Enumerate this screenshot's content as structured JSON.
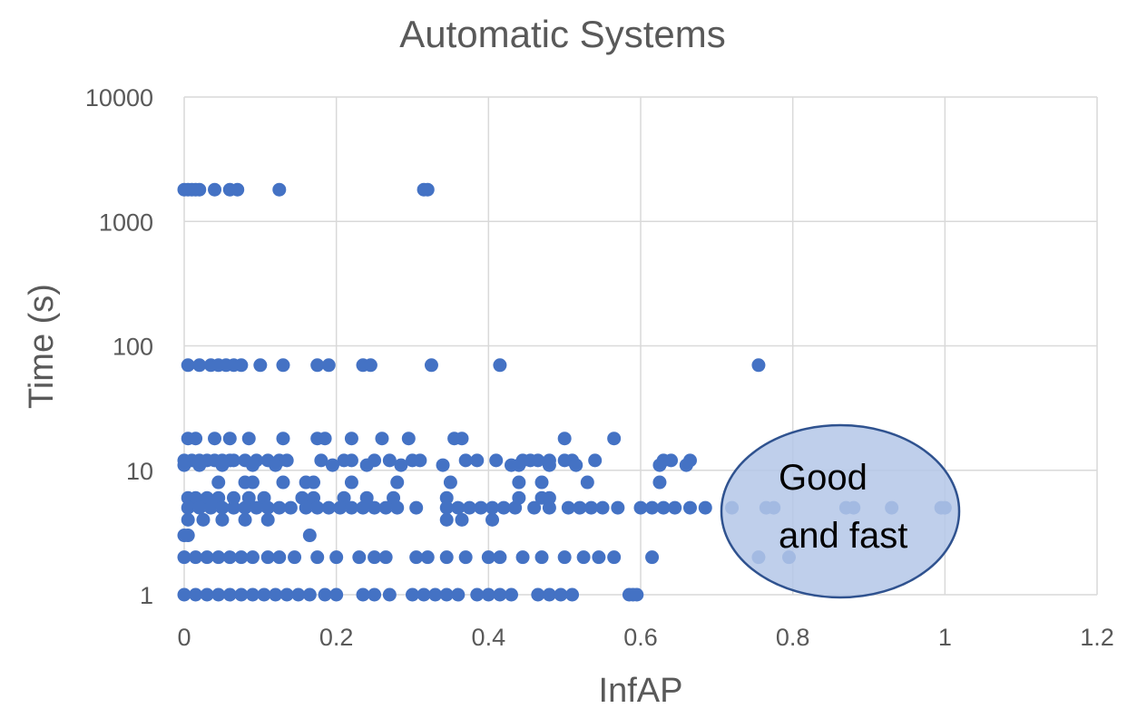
{
  "chart_data": {
    "type": "scatter",
    "title": "Automatic Systems",
    "xlabel": "InfAP",
    "ylabel": "Time (s)",
    "xlim": [
      0,
      1.2
    ],
    "ylim": [
      1,
      10000
    ],
    "y_scale": "log",
    "x_ticks": [
      "0",
      "0.2",
      "0.4",
      "0.6",
      "0.8",
      "1",
      "1.2"
    ],
    "y_ticks": [
      "1",
      "10",
      "100",
      "1000",
      "10000"
    ],
    "grid": true,
    "legend": "none",
    "marker_color": "#4472c4",
    "annotation": {
      "text_lines": [
        "Good",
        "and fast"
      ],
      "shape": "ellipse",
      "fill": "#b4c7e7",
      "stroke": "#2f528f"
    },
    "series": [
      {
        "points": [
          [
            0.0,
            1800
          ],
          [
            0.005,
            1800
          ],
          [
            0.01,
            1800
          ],
          [
            0.015,
            1800
          ],
          [
            0.02,
            1800
          ],
          [
            0.04,
            1800
          ],
          [
            0.06,
            1800
          ],
          [
            0.07,
            1800
          ],
          [
            0.125,
            1800
          ],
          [
            0.315,
            1800
          ],
          [
            0.32,
            1800
          ],
          [
            0.005,
            70
          ],
          [
            0.02,
            70
          ],
          [
            0.035,
            70
          ],
          [
            0.045,
            70
          ],
          [
            0.055,
            70
          ],
          [
            0.065,
            70
          ],
          [
            0.075,
            70
          ],
          [
            0.1,
            70
          ],
          [
            0.13,
            70
          ],
          [
            0.175,
            70
          ],
          [
            0.19,
            70
          ],
          [
            0.235,
            70
          ],
          [
            0.245,
            70
          ],
          [
            0.325,
            70
          ],
          [
            0.415,
            70
          ],
          [
            0.755,
            70
          ],
          [
            0.005,
            18
          ],
          [
            0.015,
            18
          ],
          [
            0.04,
            18
          ],
          [
            0.06,
            18
          ],
          [
            0.085,
            18
          ],
          [
            0.13,
            18
          ],
          [
            0.175,
            18
          ],
          [
            0.185,
            18
          ],
          [
            0.22,
            18
          ],
          [
            0.26,
            18
          ],
          [
            0.295,
            18
          ],
          [
            0.355,
            18
          ],
          [
            0.365,
            18
          ],
          [
            0.5,
            18
          ],
          [
            0.565,
            18
          ],
          [
            0.0,
            12
          ],
          [
            0.01,
            12
          ],
          [
            0.02,
            12
          ],
          [
            0.03,
            12
          ],
          [
            0.04,
            12
          ],
          [
            0.05,
            12
          ],
          [
            0.06,
            12
          ],
          [
            0.065,
            12
          ],
          [
            0.08,
            12
          ],
          [
            0.095,
            12
          ],
          [
            0.11,
            12
          ],
          [
            0.125,
            12
          ],
          [
            0.135,
            12
          ],
          [
            0.18,
            12
          ],
          [
            0.21,
            12
          ],
          [
            0.22,
            12
          ],
          [
            0.25,
            12
          ],
          [
            0.27,
            12
          ],
          [
            0.3,
            12
          ],
          [
            0.31,
            12
          ],
          [
            0.37,
            12
          ],
          [
            0.385,
            12
          ],
          [
            0.41,
            12
          ],
          [
            0.445,
            12
          ],
          [
            0.455,
            12
          ],
          [
            0.465,
            12
          ],
          [
            0.48,
            12
          ],
          [
            0.5,
            12
          ],
          [
            0.51,
            12
          ],
          [
            0.54,
            12
          ],
          [
            0.63,
            12
          ],
          [
            0.64,
            12
          ],
          [
            0.665,
            12
          ],
          [
            0.0,
            11
          ],
          [
            0.02,
            11
          ],
          [
            0.05,
            11
          ],
          [
            0.09,
            11
          ],
          [
            0.12,
            11
          ],
          [
            0.195,
            11
          ],
          [
            0.24,
            11
          ],
          [
            0.285,
            11
          ],
          [
            0.34,
            11
          ],
          [
            0.43,
            11
          ],
          [
            0.44,
            11
          ],
          [
            0.48,
            11
          ],
          [
            0.515,
            11
          ],
          [
            0.625,
            11
          ],
          [
            0.66,
            11
          ],
          [
            0.045,
            8
          ],
          [
            0.08,
            8
          ],
          [
            0.09,
            8
          ],
          [
            0.13,
            8
          ],
          [
            0.16,
            8
          ],
          [
            0.17,
            8
          ],
          [
            0.22,
            8
          ],
          [
            0.28,
            8
          ],
          [
            0.35,
            8
          ],
          [
            0.44,
            8
          ],
          [
            0.47,
            8
          ],
          [
            0.53,
            8
          ],
          [
            0.625,
            8
          ],
          [
            0.005,
            6
          ],
          [
            0.015,
            6
          ],
          [
            0.03,
            6
          ],
          [
            0.045,
            6
          ],
          [
            0.065,
            6
          ],
          [
            0.085,
            6
          ],
          [
            0.105,
            6
          ],
          [
            0.155,
            6
          ],
          [
            0.17,
            6
          ],
          [
            0.21,
            6
          ],
          [
            0.24,
            6
          ],
          [
            0.275,
            6
          ],
          [
            0.345,
            6
          ],
          [
            0.44,
            6
          ],
          [
            0.47,
            6
          ],
          [
            0.48,
            6
          ],
          [
            0.005,
            5
          ],
          [
            0.02,
            5
          ],
          [
            0.035,
            5
          ],
          [
            0.05,
            5
          ],
          [
            0.065,
            5
          ],
          [
            0.08,
            5
          ],
          [
            0.095,
            5
          ],
          [
            0.11,
            5
          ],
          [
            0.125,
            5
          ],
          [
            0.14,
            5
          ],
          [
            0.16,
            5
          ],
          [
            0.175,
            5
          ],
          [
            0.19,
            5
          ],
          [
            0.205,
            5
          ],
          [
            0.22,
            5
          ],
          [
            0.235,
            5
          ],
          [
            0.25,
            5
          ],
          [
            0.265,
            5
          ],
          [
            0.28,
            5
          ],
          [
            0.305,
            5
          ],
          [
            0.345,
            5
          ],
          [
            0.36,
            5
          ],
          [
            0.375,
            5
          ],
          [
            0.39,
            5
          ],
          [
            0.405,
            5
          ],
          [
            0.42,
            5
          ],
          [
            0.435,
            5
          ],
          [
            0.46,
            5
          ],
          [
            0.48,
            5
          ],
          [
            0.505,
            5
          ],
          [
            0.52,
            5
          ],
          [
            0.535,
            5
          ],
          [
            0.55,
            5
          ],
          [
            0.57,
            5
          ],
          [
            0.6,
            5
          ],
          [
            0.615,
            5
          ],
          [
            0.63,
            5
          ],
          [
            0.645,
            5
          ],
          [
            0.665,
            5
          ],
          [
            0.685,
            5
          ],
          [
            0.72,
            5
          ],
          [
            0.765,
            5
          ],
          [
            0.775,
            5
          ],
          [
            0.87,
            5
          ],
          [
            0.88,
            5
          ],
          [
            0.93,
            5
          ],
          [
            0.995,
            5
          ],
          [
            1.0,
            5
          ],
          [
            0.005,
            4
          ],
          [
            0.025,
            4
          ],
          [
            0.05,
            4
          ],
          [
            0.08,
            4
          ],
          [
            0.11,
            4
          ],
          [
            0.345,
            4
          ],
          [
            0.365,
            4
          ],
          [
            0.405,
            4
          ],
          [
            0.0,
            3
          ],
          [
            0.005,
            3
          ],
          [
            0.165,
            3
          ],
          [
            0.0,
            2
          ],
          [
            0.015,
            2
          ],
          [
            0.03,
            2
          ],
          [
            0.045,
            2
          ],
          [
            0.06,
            2
          ],
          [
            0.075,
            2
          ],
          [
            0.09,
            2
          ],
          [
            0.11,
            2
          ],
          [
            0.125,
            2
          ],
          [
            0.145,
            2
          ],
          [
            0.175,
            2
          ],
          [
            0.2,
            2
          ],
          [
            0.23,
            2
          ],
          [
            0.25,
            2
          ],
          [
            0.265,
            2
          ],
          [
            0.305,
            2
          ],
          [
            0.32,
            2
          ],
          [
            0.345,
            2
          ],
          [
            0.37,
            2
          ],
          [
            0.4,
            2
          ],
          [
            0.415,
            2
          ],
          [
            0.445,
            2
          ],
          [
            0.47,
            2
          ],
          [
            0.5,
            2
          ],
          [
            0.525,
            2
          ],
          [
            0.545,
            2
          ],
          [
            0.565,
            2
          ],
          [
            0.615,
            2
          ],
          [
            0.755,
            2
          ],
          [
            0.795,
            2
          ],
          [
            0.0,
            1
          ],
          [
            0.015,
            1
          ],
          [
            0.03,
            1
          ],
          [
            0.045,
            1
          ],
          [
            0.06,
            1
          ],
          [
            0.075,
            1
          ],
          [
            0.09,
            1
          ],
          [
            0.105,
            1
          ],
          [
            0.12,
            1
          ],
          [
            0.135,
            1
          ],
          [
            0.15,
            1
          ],
          [
            0.165,
            1
          ],
          [
            0.185,
            1
          ],
          [
            0.2,
            1
          ],
          [
            0.235,
            1
          ],
          [
            0.25,
            1
          ],
          [
            0.27,
            1
          ],
          [
            0.3,
            1
          ],
          [
            0.315,
            1
          ],
          [
            0.33,
            1
          ],
          [
            0.345,
            1
          ],
          [
            0.36,
            1
          ],
          [
            0.385,
            1
          ],
          [
            0.4,
            1
          ],
          [
            0.415,
            1
          ],
          [
            0.43,
            1
          ],
          [
            0.465,
            1
          ],
          [
            0.48,
            1
          ],
          [
            0.495,
            1
          ],
          [
            0.51,
            1
          ],
          [
            0.585,
            1
          ],
          [
            0.59,
            1
          ],
          [
            0.595,
            1
          ]
        ]
      }
    ]
  }
}
